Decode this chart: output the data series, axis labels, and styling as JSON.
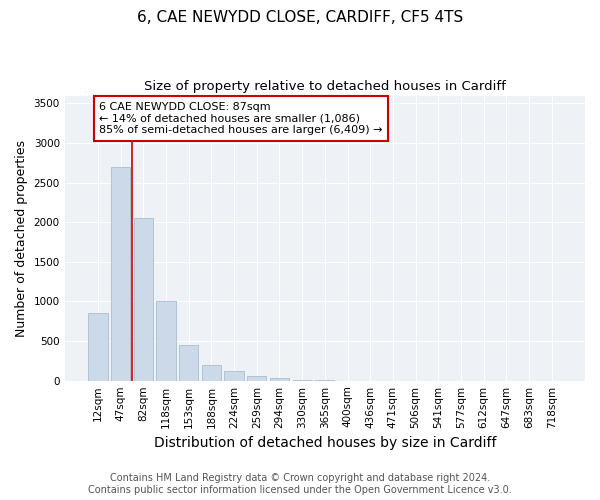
{
  "title": "6, CAE NEWYDD CLOSE, CARDIFF, CF5 4TS",
  "subtitle": "Size of property relative to detached houses in Cardiff",
  "xlabel": "Distribution of detached houses by size in Cardiff",
  "ylabel": "Number of detached properties",
  "categories": [
    "12sqm",
    "47sqm",
    "82sqm",
    "118sqm",
    "153sqm",
    "188sqm",
    "224sqm",
    "259sqm",
    "294sqm",
    "330sqm",
    "365sqm",
    "400sqm",
    "436sqm",
    "471sqm",
    "506sqm",
    "541sqm",
    "577sqm",
    "612sqm",
    "647sqm",
    "683sqm",
    "718sqm"
  ],
  "values": [
    850,
    2700,
    2050,
    1000,
    450,
    200,
    120,
    60,
    30,
    10,
    5,
    2,
    1,
    0,
    0,
    0,
    0,
    0,
    0,
    0,
    0
  ],
  "bar_color": "#ccd9e8",
  "bar_edgecolor": "#a8bece",
  "ylim": [
    0,
    3600
  ],
  "yticks": [
    0,
    500,
    1000,
    1500,
    2000,
    2500,
    3000,
    3500
  ],
  "redline_index": 1.5,
  "annotation_title": "6 CAE NEWYDD CLOSE: 87sqm",
  "annotation_line1": "← 14% of detached houses are smaller (1,086)",
  "annotation_line2": "85% of semi-detached houses are larger (6,409) →",
  "annotation_box_color": "#cc0000",
  "background_color": "#eef2f7",
  "footer_line1": "Contains HM Land Registry data © Crown copyright and database right 2024.",
  "footer_line2": "Contains public sector information licensed under the Open Government Licence v3.0.",
  "title_fontsize": 11,
  "subtitle_fontsize": 9.5,
  "xlabel_fontsize": 10,
  "ylabel_fontsize": 9,
  "tick_fontsize": 7.5,
  "footer_fontsize": 7,
  "ann_fontsize": 8
}
